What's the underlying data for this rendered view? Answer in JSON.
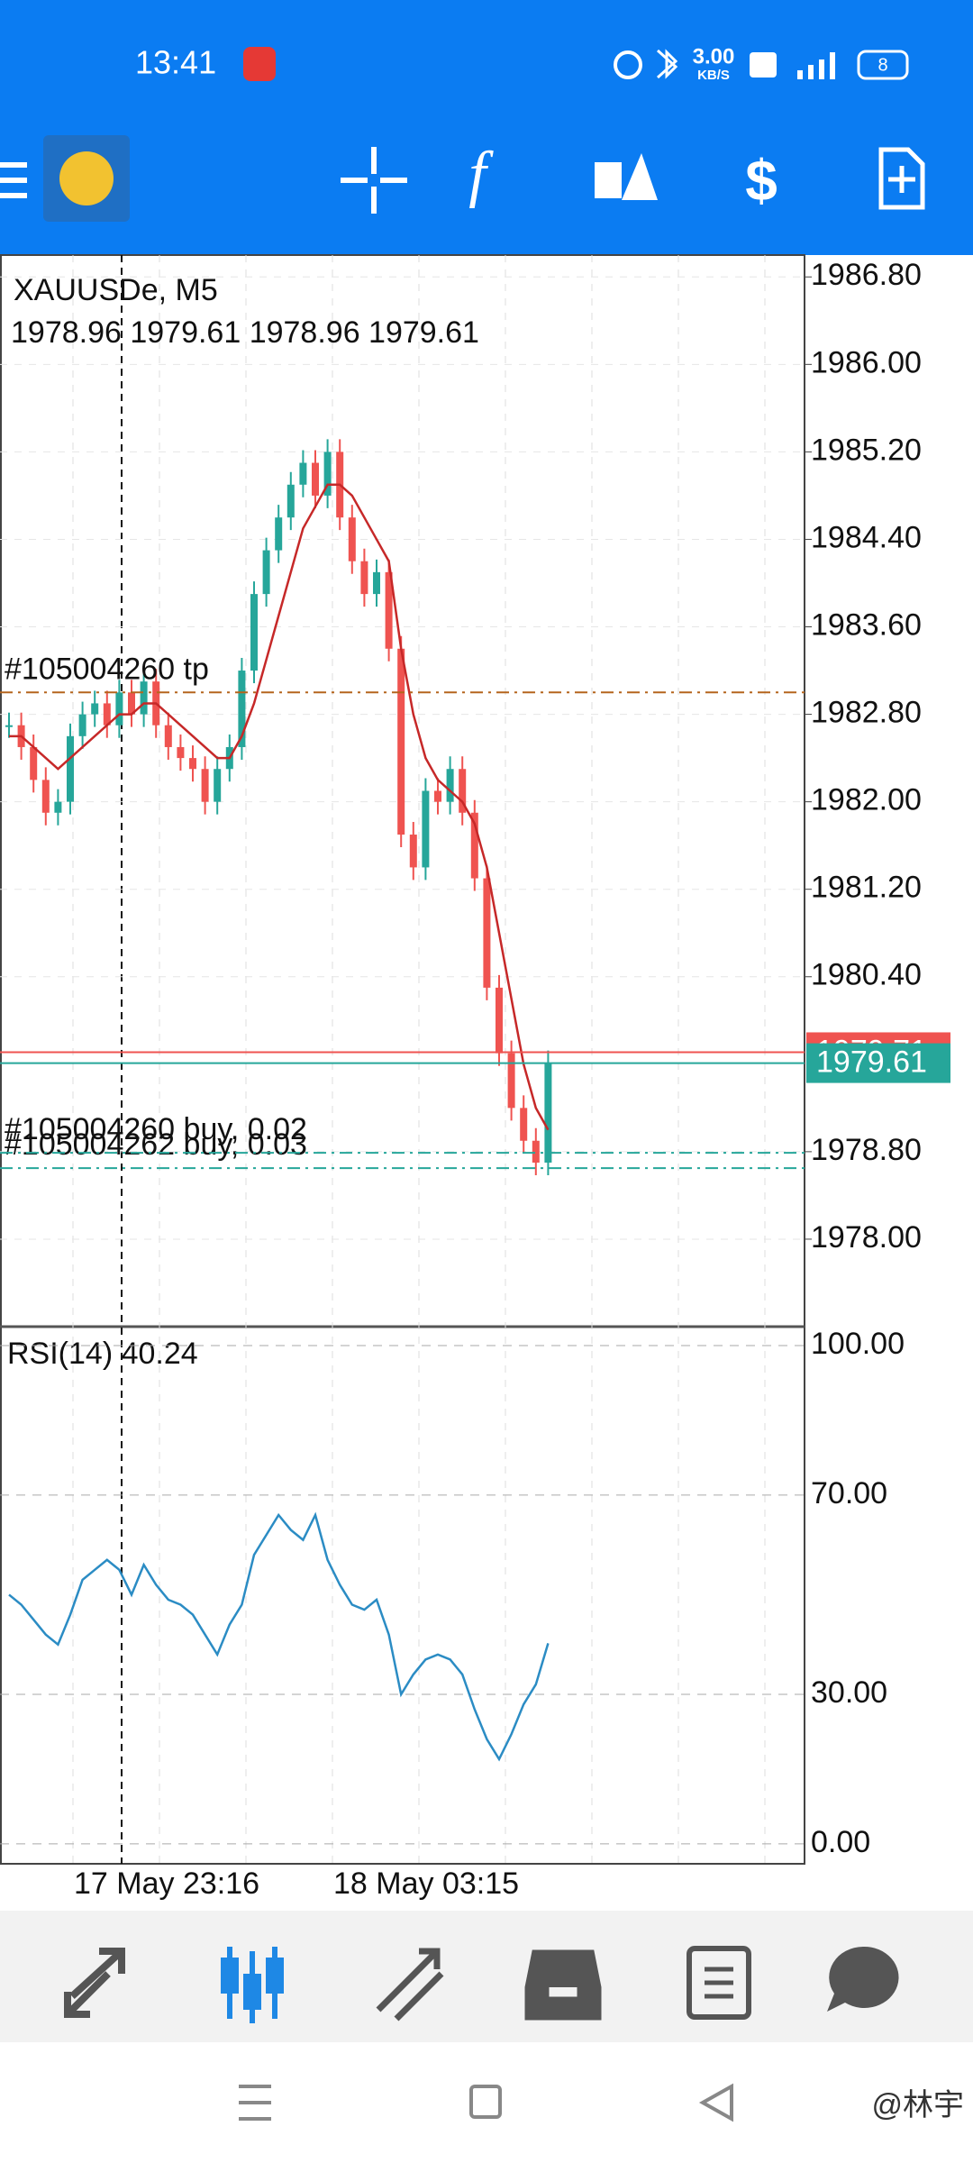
{
  "status_bar": {
    "time": "13:41",
    "net_speed_value": "3.00",
    "net_speed_unit": "KB/S",
    "battery": "8"
  },
  "chart_data": {
    "type": "candlestick",
    "symbol_label": "XAUUSDe, M5",
    "ohlc_label": "1978.96 1979.61 1978.96 1979.61",
    "up_color": "#26a69a",
    "down_color": "#ef5350",
    "closes": [
      1982.7,
      1982.5,
      1982.2,
      1981.9,
      1982.0,
      1982.6,
      1982.8,
      1982.9,
      1982.7,
      1983.0,
      1982.8,
      1983.1,
      1982.7,
      1982.5,
      1982.4,
      1982.3,
      1982.0,
      1982.3,
      1982.5,
      1983.2,
      1983.9,
      1984.3,
      1984.6,
      1984.9,
      1985.1,
      1984.8,
      1985.2,
      1984.6,
      1984.2,
      1983.9,
      1984.1,
      1983.4,
      1981.7,
      1981.4,
      1982.1,
      1982.0,
      1982.3,
      1981.9,
      1981.3,
      1980.3,
      1979.7,
      1979.2,
      1978.9,
      1978.7,
      1979.61
    ],
    "moving_average": {
      "color": "#c62828",
      "values": [
        1982.6,
        1982.6,
        1982.5,
        1982.4,
        1982.3,
        1982.4,
        1982.5,
        1982.6,
        1982.7,
        1982.8,
        1982.8,
        1982.9,
        1982.9,
        1982.8,
        1982.7,
        1982.6,
        1982.5,
        1982.4,
        1982.4,
        1982.6,
        1982.9,
        1983.3,
        1983.7,
        1984.1,
        1984.5,
        1984.7,
        1984.9,
        1984.9,
        1984.8,
        1984.6,
        1984.4,
        1984.2,
        1983.4,
        1982.8,
        1982.4,
        1982.2,
        1982.1,
        1982.0,
        1981.8,
        1981.4,
        1980.8,
        1980.2,
        1979.6,
        1979.2,
        1979.0
      ]
    },
    "ylim": [
      1977.2,
      1987.0
    ],
    "yticks": [
      {
        "value": 1986.8,
        "label": "1986.80"
      },
      {
        "value": 1986.0,
        "label": "1986.00"
      },
      {
        "value": 1985.2,
        "label": "1985.20"
      },
      {
        "value": 1984.4,
        "label": "1984.40"
      },
      {
        "value": 1983.6,
        "label": "1983.60"
      },
      {
        "value": 1982.8,
        "label": "1982.80"
      },
      {
        "value": 1982.0,
        "label": "1982.00"
      },
      {
        "value": 1981.2,
        "label": "1981.20"
      },
      {
        "value": 1980.4,
        "label": "1980.40"
      },
      {
        "value": 1978.8,
        "label": "1978.80"
      },
      {
        "value": 1978.0,
        "label": "1978.00"
      }
    ],
    "levels": [
      {
        "label": "#105004262 buy, 0.03",
        "value": 1978.65,
        "color": "#26a69a"
      },
      {
        "label": "#105004260 buy, 0.02",
        "value": 1978.79,
        "color": "#26a69a"
      },
      {
        "label": "#105004260 tp",
        "value": 1983.0,
        "color": "#b5651d"
      }
    ],
    "ask": {
      "value": 1979.71,
      "color": "#ef5350"
    },
    "bid": {
      "value": 1979.61,
      "color": "#26a69a"
    },
    "x_labels": [
      "17 May 23:16",
      "18 May 03:15"
    ],
    "rsi": {
      "type": "line",
      "label": "RSI(14) 40.24",
      "color": "#2b8cc4",
      "values": [
        50,
        48,
        45,
        42,
        40,
        46,
        53,
        55,
        57,
        55,
        50,
        56,
        52,
        49,
        48,
        46,
        42,
        38,
        44,
        48,
        58,
        62,
        66,
        63,
        61,
        66,
        57,
        52,
        48,
        47,
        49,
        42,
        30,
        34,
        37,
        38,
        37,
        34,
        27,
        21,
        17,
        22,
        28,
        32,
        40.24
      ],
      "ylim": [
        -4,
        103.8
      ],
      "yticks": [
        {
          "value": 100,
          "label": "100.00"
        },
        {
          "value": 70,
          "label": "70.00"
        },
        {
          "value": 30,
          "label": "30.00"
        },
        {
          "value": 0,
          "label": "0.00"
        }
      ]
    }
  },
  "watermark": "@林宇"
}
